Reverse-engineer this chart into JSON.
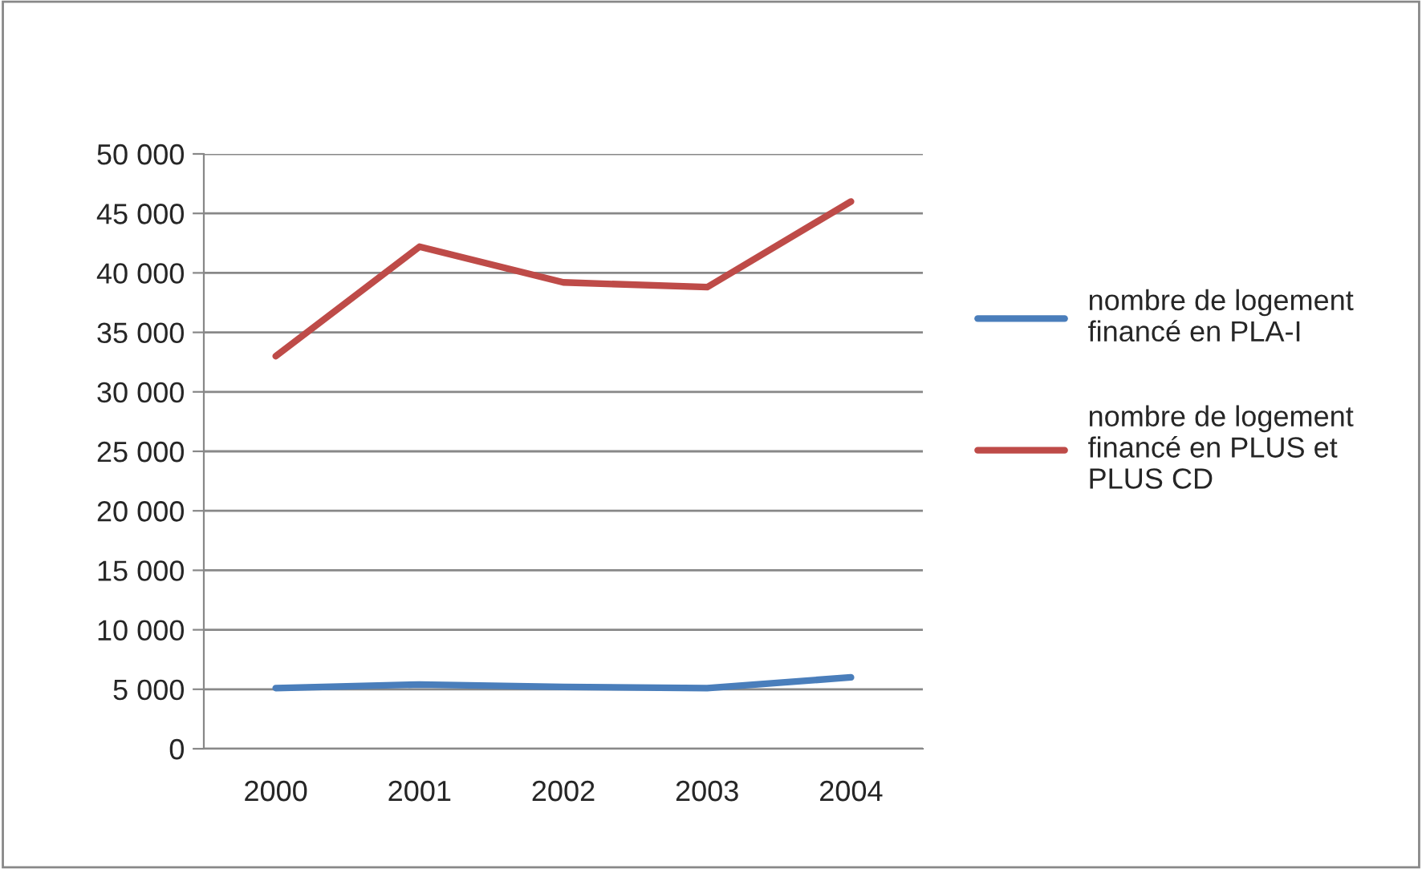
{
  "chart_data": {
    "type": "line",
    "categories": [
      "2000",
      "2001",
      "2002",
      "2003",
      "2004"
    ],
    "series": [
      {
        "name": "nombre de logement financé en PLA-I",
        "color": "#4a7ebb",
        "values": [
          5100,
          5400,
          5200,
          5100,
          6000
        ]
      },
      {
        "name": "nombre de logement financé en PLUS et PLUS CD",
        "color": "#be4b48",
        "values": [
          33000,
          42200,
          39200,
          38800,
          46000
        ]
      }
    ],
    "ylim": [
      0,
      50000
    ],
    "yticks": [
      {
        "value": 0,
        "label": "0"
      },
      {
        "value": 5000,
        "label": "5 000"
      },
      {
        "value": 10000,
        "label": "10 000"
      },
      {
        "value": 15000,
        "label": "15 000"
      },
      {
        "value": 20000,
        "label": "20 000"
      },
      {
        "value": 25000,
        "label": "25 000"
      },
      {
        "value": 30000,
        "label": "30 000"
      },
      {
        "value": 35000,
        "label": "35 000"
      },
      {
        "value": 40000,
        "label": "40 000"
      },
      {
        "value": 45000,
        "label": "45 000"
      },
      {
        "value": 50000,
        "label": "50 000"
      }
    ],
    "grid": "y",
    "legend": "right",
    "marker": "none",
    "line_style": "solid"
  }
}
